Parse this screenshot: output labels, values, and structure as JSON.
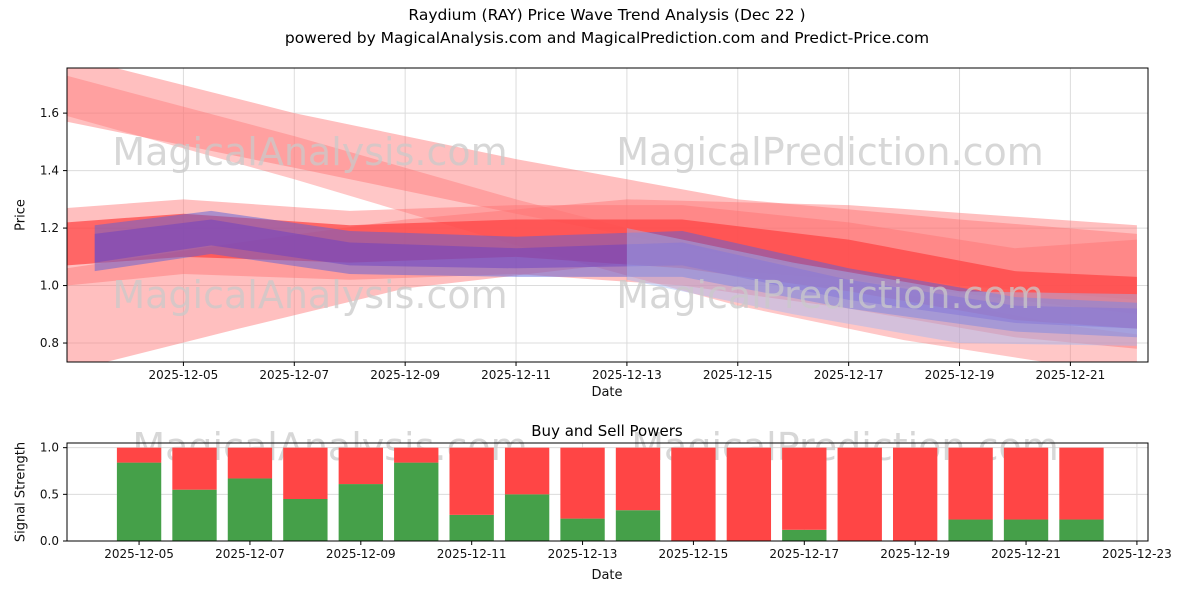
{
  "title": {
    "line1": "Raydium  (RAY) Price Wave Trend Analysis (Dec 22 )",
    "line2": "powered by MagicalAnalysis.com and MagicalPrediction.com and Predict-Price.com"
  },
  "watermarks": {
    "analysis": "MagicalAnalysis.com",
    "prediction": "MagicalPrediction.com"
  },
  "colors": {
    "grid": "#dcdcdc",
    "spine": "#000000",
    "watermark": "#c9c9c9",
    "buy_green": "#45a049",
    "sell_red": "#ff4545",
    "band_red": "#ff7272",
    "band_red_dark": "#ff4040",
    "band_blue": "#5a5fd8",
    "band_purple": "#6b3fc2",
    "band_lightblue": "#9fb9f5"
  },
  "chart_data": [
    {
      "type": "area",
      "name": "price_wave_trend",
      "ylabel": "Price",
      "xlabel": "Date",
      "ylim": [
        0.734,
        1.757
      ],
      "yticks": [
        0.8,
        1.0,
        1.2,
        1.4,
        1.6
      ],
      "xlim_days": [
        -2.1,
        17.4
      ],
      "xtick_days": [
        0,
        2,
        4,
        6,
        8,
        10,
        12,
        14,
        16
      ],
      "xtick_labels": [
        "2025-12-05",
        "2025-12-07",
        "2025-12-09",
        "2025-12-11",
        "2025-12-13",
        "2025-12-15",
        "2025-12-17",
        "2025-12-19",
        "2025-12-21"
      ],
      "grid": true,
      "legend": "none",
      "bands": [
        {
          "name": "fan-down-wide",
          "color": "band_red",
          "opacity": 0.45,
          "x": [
            -2.1,
            2,
            6,
            10,
            14,
            17.2
          ],
          "upper": [
            1.8,
            1.6,
            1.44,
            1.3,
            1.23,
            1.18
          ],
          "lower": [
            1.57,
            1.41,
            1.25,
            1.1,
            1.0,
            0.95
          ]
        },
        {
          "name": "fan-down-steep",
          "color": "band_red",
          "opacity": 0.4,
          "x": [
            -2.1,
            2,
            6,
            10,
            13,
            16,
            17.2
          ],
          "upper": [
            1.73,
            1.52,
            1.3,
            1.1,
            0.97,
            0.86,
            0.83
          ],
          "lower": [
            1.59,
            1.37,
            1.14,
            0.93,
            0.81,
            0.72,
            0.7
          ]
        },
        {
          "name": "fan-up-from-low",
          "color": "band_red",
          "opacity": 0.45,
          "x": [
            -2.1,
            1,
            4,
            8,
            12,
            17.2
          ],
          "upper": [
            1.06,
            1.15,
            1.23,
            1.3,
            1.28,
            1.21
          ],
          "lower": [
            0.7,
            0.85,
            0.99,
            1.08,
            1.02,
            0.9
          ]
        },
        {
          "name": "central-band-outer",
          "color": "band_red",
          "opacity": 0.45,
          "x": [
            -2.1,
            0,
            3,
            6,
            9,
            12,
            15,
            17.2
          ],
          "upper": [
            1.27,
            1.3,
            1.26,
            1.28,
            1.28,
            1.22,
            1.13,
            1.16
          ],
          "lower": [
            1.0,
            1.04,
            1.02,
            1.04,
            1.0,
            0.92,
            0.82,
            0.78
          ]
        },
        {
          "name": "central-band-core",
          "color": "band_red_dark",
          "opacity": 0.7,
          "x": [
            -2.1,
            0,
            3,
            6,
            9,
            12,
            15,
            17.2
          ],
          "upper": [
            1.22,
            1.25,
            1.21,
            1.23,
            1.23,
            1.16,
            1.05,
            1.03
          ],
          "lower": [
            1.07,
            1.1,
            1.08,
            1.1,
            1.06,
            0.98,
            0.88,
            0.85
          ]
        },
        {
          "name": "blue-band-wide",
          "color": "band_blue",
          "opacity": 0.5,
          "x": [
            -1.6,
            0.5,
            3,
            6,
            9,
            12,
            15,
            17.2
          ],
          "upper": [
            1.21,
            1.26,
            1.19,
            1.17,
            1.19,
            1.06,
            0.96,
            0.94
          ],
          "lower": [
            1.05,
            1.11,
            1.04,
            1.03,
            1.03,
            0.92,
            0.84,
            0.82
          ]
        },
        {
          "name": "purple-band-core",
          "color": "band_purple",
          "opacity": 0.5,
          "x": [
            -1.6,
            0.5,
            3,
            6,
            9,
            12,
            15,
            17.2
          ],
          "upper": [
            1.18,
            1.23,
            1.15,
            1.13,
            1.15,
            1.02,
            0.93,
            0.92
          ],
          "lower": [
            1.08,
            1.14,
            1.07,
            1.06,
            1.07,
            0.95,
            0.87,
            0.85
          ]
        },
        {
          "name": "lightblue-tail",
          "color": "band_lightblue",
          "opacity": 0.45,
          "x": [
            8,
            11,
            14,
            17.2
          ],
          "upper": [
            1.2,
            1.08,
            0.98,
            0.97
          ],
          "lower": [
            1.02,
            0.9,
            0.8,
            0.79
          ]
        }
      ]
    },
    {
      "type": "bar",
      "name": "buy_sell_powers",
      "title": "Buy and Sell Powers",
      "ylabel": "Signal Strength",
      "xlabel": "Date",
      "ylim": [
        0,
        1.05
      ],
      "yticks": [
        0.0,
        0.5,
        1.0
      ],
      "xlim_days": [
        -1.3,
        18.2
      ],
      "xtick_days": [
        0,
        2,
        4,
        6,
        8,
        10,
        12,
        14,
        16,
        18
      ],
      "xtick_labels": [
        "2025-12-05",
        "2025-12-07",
        "2025-12-09",
        "2025-12-11",
        "2025-12-13",
        "2025-12-15",
        "2025-12-17",
        "2025-12-19",
        "2025-12-21",
        "2025-12-23"
      ],
      "grid": true,
      "stacked": true,
      "bar_width_days": 0.8,
      "categories": [
        "2025-12-05",
        "2025-12-06",
        "2025-12-07",
        "2025-12-08",
        "2025-12-09",
        "2025-12-10",
        "2025-12-11",
        "2025-12-12",
        "2025-12-13",
        "2025-12-14",
        "2025-12-15",
        "2025-12-16",
        "2025-12-17",
        "2025-12-18",
        "2025-12-19",
        "2025-12-20",
        "2025-12-21",
        "2025-12-22"
      ],
      "series": [
        {
          "name": "Buy",
          "color_key": "buy_green",
          "values": [
            0.84,
            0.55,
            0.67,
            0.45,
            0.61,
            0.84,
            0.28,
            0.5,
            0.24,
            0.33,
            0.0,
            0.0,
            0.12,
            0.0,
            0.0,
            0.23,
            0.23,
            0.23
          ]
        },
        {
          "name": "Sell",
          "color_key": "sell_red",
          "values": [
            0.16,
            0.45,
            0.33,
            0.55,
            0.39,
            0.16,
            0.72,
            0.5,
            0.76,
            0.67,
            1.0,
            1.0,
            0.88,
            1.0,
            1.0,
            0.77,
            0.77,
            0.77
          ]
        }
      ]
    }
  ]
}
